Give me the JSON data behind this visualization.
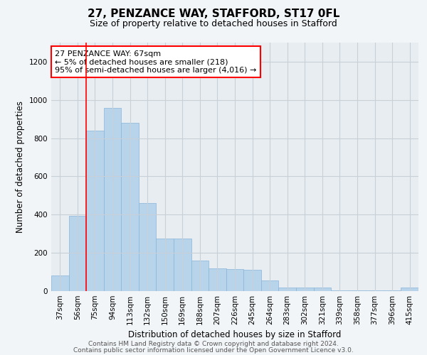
{
  "title1": "27, PENZANCE WAY, STAFFORD, ST17 0FL",
  "title2": "Size of property relative to detached houses in Stafford",
  "xlabel": "Distribution of detached houses by size in Stafford",
  "ylabel": "Number of detached properties",
  "categories": [
    "37sqm",
    "56sqm",
    "75sqm",
    "94sqm",
    "113sqm",
    "132sqm",
    "150sqm",
    "169sqm",
    "188sqm",
    "207sqm",
    "226sqm",
    "245sqm",
    "264sqm",
    "283sqm",
    "302sqm",
    "321sqm",
    "339sqm",
    "358sqm",
    "377sqm",
    "396sqm",
    "415sqm"
  ],
  "values": [
    80,
    395,
    840,
    960,
    880,
    460,
    275,
    275,
    160,
    120,
    115,
    110,
    55,
    18,
    18,
    18,
    5,
    5,
    5,
    5,
    18
  ],
  "bar_color": "#b8d4ea",
  "bar_edge_color": "#88b4d8",
  "annotation_box_text": "27 PENZANCE WAY: 67sqm\n← 5% of detached houses are smaller (218)\n95% of semi-detached houses are larger (4,016) →",
  "annotation_box_color": "white",
  "annotation_box_edge_color": "red",
  "vline_color": "red",
  "vline_x_index": 1.5,
  "ylim": [
    0,
    1300
  ],
  "yticks": [
    0,
    200,
    400,
    600,
    800,
    1000,
    1200
  ],
  "grid_color": "#c8d0d8",
  "background_color": "#f2f5f8",
  "plot_bg_color": "#e8edf2",
  "footer1": "Contains HM Land Registry data © Crown copyright and database right 2024.",
  "footer2": "Contains public sector information licensed under the Open Government Licence v3.0.",
  "title1_fontsize": 11,
  "title2_fontsize": 9,
  "xlabel_fontsize": 8.5,
  "ylabel_fontsize": 8.5,
  "tick_fontsize": 7.5,
  "annotation_fontsize": 8,
  "footer_fontsize": 6.5
}
